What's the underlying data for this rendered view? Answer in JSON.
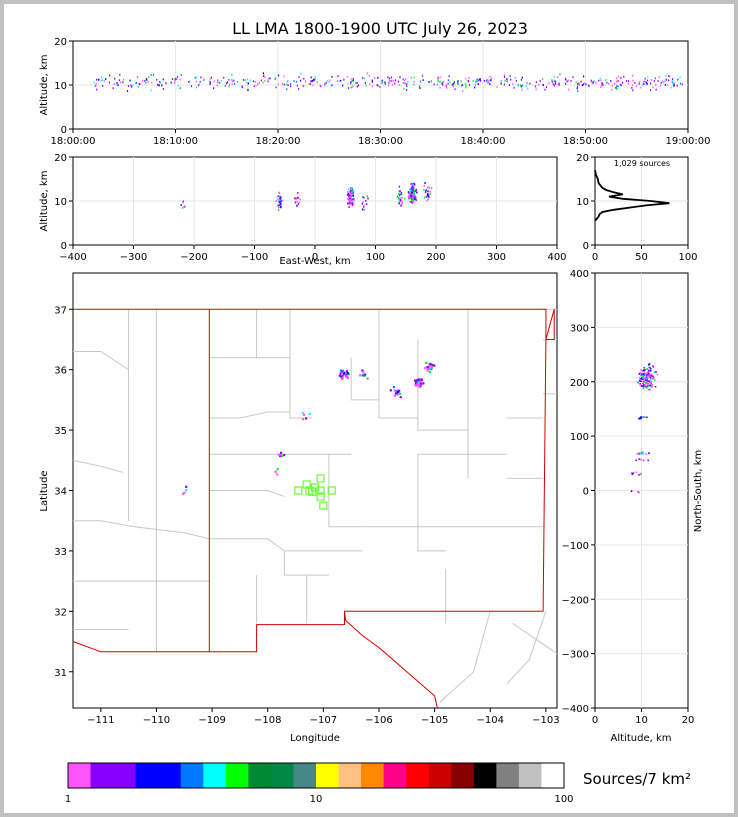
{
  "title": "LL LMA 1800-1900 UTC July 26, 2023",
  "colors": {
    "background": "#c0c0c0",
    "panel": "#ffffff",
    "state_border": "#d40000",
    "county_border": "#c8c8c8",
    "station": "#66ff33"
  },
  "chart_data": [
    {
      "name": "time-height",
      "type": "scatter",
      "ylabel": "Altitude, km",
      "ylim": [
        0,
        20
      ],
      "yticks": [
        "0",
        "10",
        "20"
      ],
      "xticks": [
        "18:00:00",
        "18:10:00",
        "18:20:00",
        "18:30:00",
        "18:40:00",
        "18:50:00",
        "19:00:00"
      ]
    },
    {
      "name": "east-west-height",
      "type": "scatter",
      "xlabel": "East-West, km",
      "ylabel": "Altitude, km",
      "xlim": [
        -400,
        400
      ],
      "ylim": [
        0,
        20
      ],
      "xticks": [
        "−400",
        "−300",
        "−200",
        "−100",
        "0",
        "100",
        "200",
        "300",
        "400"
      ],
      "yticks": [
        "0",
        "10",
        "20"
      ],
      "clusters": [
        {
          "x": -220,
          "y": 9,
          "n": 6
        },
        {
          "x": -60,
          "y": 10,
          "n": 30
        },
        {
          "x": -30,
          "y": 10,
          "n": 12
        },
        {
          "x": 58,
          "y": 11,
          "n": 80
        },
        {
          "x": 80,
          "y": 10,
          "n": 12
        },
        {
          "x": 140,
          "y": 11,
          "n": 30
        },
        {
          "x": 160,
          "y": 12,
          "n": 120
        },
        {
          "x": 185,
          "y": 12,
          "n": 25
        }
      ]
    },
    {
      "name": "altitude-histogram",
      "type": "line",
      "annotation": "1,029 sources",
      "xlim": [
        0,
        100
      ],
      "ylim": [
        0,
        20
      ],
      "xticks": [
        "0",
        "50",
        "100"
      ],
      "yticks": [
        "0",
        "10",
        "20"
      ],
      "points": [
        [
          0,
          5.5
        ],
        [
          2,
          6
        ],
        [
          4,
          6.5
        ],
        [
          5,
          7
        ],
        [
          8,
          7.5
        ],
        [
          20,
          8
        ],
        [
          55,
          9
        ],
        [
          80,
          9.5
        ],
        [
          60,
          10
        ],
        [
          30,
          10.5
        ],
        [
          15,
          11
        ],
        [
          30,
          11.5
        ],
        [
          20,
          12
        ],
        [
          12,
          12.5
        ],
        [
          8,
          13
        ],
        [
          6,
          13.5
        ],
        [
          4,
          14
        ],
        [
          3,
          15
        ],
        [
          1,
          16
        ],
        [
          0,
          17
        ]
      ]
    },
    {
      "name": "plan-view",
      "type": "scatter",
      "xlabel": "Longitude",
      "ylabel": "Latitude",
      "xlim": [
        -111.5,
        -102.8
      ],
      "ylim": [
        30.4,
        37.6
      ],
      "xticks": [
        "−111",
        "−110",
        "−109",
        "−108",
        "−107",
        "−106",
        "−105",
        "−104",
        "−103"
      ],
      "yticks": [
        "31",
        "32",
        "33",
        "34",
        "35",
        "36",
        "37"
      ],
      "clusters": [
        {
          "lon": -109.5,
          "lat": 34.02,
          "n": 4
        },
        {
          "lon": -107.8,
          "lat": 34.6,
          "n": 6
        },
        {
          "lon": -107.85,
          "lat": 34.3,
          "n": 3
        },
        {
          "lon": -107.35,
          "lat": 35.25,
          "n": 5
        },
        {
          "lon": -106.65,
          "lat": 35.95,
          "n": 35
        },
        {
          "lon": -106.3,
          "lat": 35.95,
          "n": 8
        },
        {
          "lon": -105.7,
          "lat": 35.65,
          "n": 15
        },
        {
          "lon": -105.3,
          "lat": 35.8,
          "n": 45
        },
        {
          "lon": -105.1,
          "lat": 36.05,
          "n": 25
        }
      ],
      "stations": [
        [
          -107.05,
          34.2
        ],
        [
          -107.15,
          34.05
        ],
        [
          -107.3,
          34.1
        ],
        [
          -107.25,
          34.0
        ],
        [
          -107.05,
          34.0
        ],
        [
          -106.85,
          34.0
        ],
        [
          -107.05,
          33.9
        ],
        [
          -107.0,
          33.75
        ],
        [
          -107.45,
          34.0
        ],
        [
          -107.2,
          33.98
        ]
      ]
    },
    {
      "name": "north-south-height",
      "type": "scatter",
      "xlabel": "Altitude, km",
      "ylabel": "North-South, km",
      "xlim": [
        0,
        20
      ],
      "ylim": [
        -400,
        400
      ],
      "xticks": [
        "0",
        "10",
        "20"
      ],
      "yticks": [
        "−400",
        "−300",
        "−200",
        "−100",
        "0",
        "100",
        "200",
        "300",
        "400"
      ],
      "clusters": [
        {
          "alt": 11,
          "y": 210,
          "n": 150
        },
        {
          "alt": 10,
          "y": 135,
          "n": 10
        },
        {
          "alt": 10,
          "y": 70,
          "n": 12
        },
        {
          "alt": 10,
          "y": 57,
          "n": 6
        },
        {
          "alt": 9,
          "y": 32,
          "n": 8
        },
        {
          "alt": 9,
          "y": 0,
          "n": 3
        }
      ]
    }
  ],
  "colorbar": {
    "label": "Sources/7 km²",
    "ticks": [
      "1",
      "10",
      "100"
    ],
    "colors": [
      "#ff55ff",
      "#8800ff",
      "#8800ff",
      "#0000ff",
      "#0000ff",
      "#0077ff",
      "#00ffff",
      "#00ff00",
      "#008833",
      "#008844",
      "#448888",
      "#ffff00",
      "#ffc080",
      "#ff8800",
      "#ff0088",
      "#ff0000",
      "#cc0000",
      "#880000",
      "#000000",
      "#808080",
      "#c0c0c0",
      "#ffffff"
    ]
  }
}
